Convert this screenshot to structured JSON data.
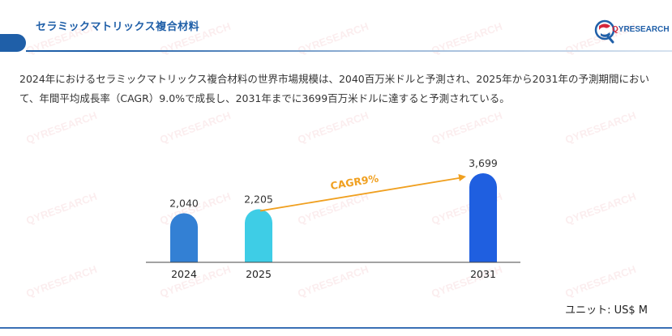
{
  "header": {
    "title": "セラミックマトリックス複合材料",
    "logo_prefix": "Q",
    "logo_text": "YRESEARCH"
  },
  "description": "2024年におけるセラミックマトリックス複合材料の世界市場規模は、2040百万米ドルと予測され、2025年から2031年の予測期間において、年間平均成長率（CAGR）9.0%で成長し、2031年までに3699百万米ドルに達すると予測されている。",
  "chart_data": {
    "type": "bar",
    "categories": [
      "2024",
      "2025",
      "2031"
    ],
    "values": [
      2040,
      2205,
      3699
    ],
    "value_labels": [
      "2,040",
      "2,205",
      "3,699"
    ],
    "colors": [
      "#3380d4",
      "#3ecde6",
      "#1f5fe0"
    ],
    "annotation": "CAGR9%",
    "annotation_color": "#f0a020",
    "unit": "ユニット: US$ M"
  },
  "watermark_text": "QYRESEARCH"
}
